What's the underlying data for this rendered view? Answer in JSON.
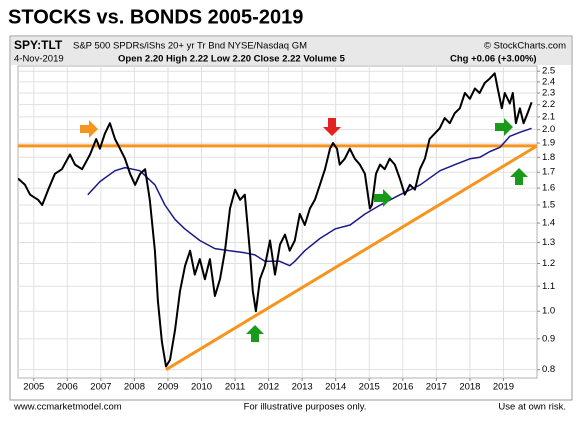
{
  "chart_data": {
    "type": "line",
    "title": "STOCKS vs. BONDS 2005-2019",
    "symbol": "SPY:TLT",
    "description": "S&P 500 SPDRs/iShs 20+ yr Tr Bnd NYSE/Nasdaq GM",
    "source": "© StockCharts.com",
    "date": "4-Nov-2019",
    "quote": "Open 2.20  High 2.22  Low 2.20  Close 2.22  Volume 5",
    "change": "Chg +0.06 (+3.00%)",
    "footer": [
      "www.ccmarketmodel.com",
      "For illustrative purposes only.",
      "Use at own risk."
    ],
    "log_scale": true,
    "grid": true,
    "xlim": [
      2004.53,
      2020.0
    ],
    "xticks": [
      2005,
      2006,
      2007,
      2008,
      2009,
      2010,
      2011,
      2012,
      2013,
      2014,
      2015,
      2016,
      2017,
      2018,
      2019
    ],
    "ylim": [
      0.775,
      2.55
    ],
    "yticks": [
      0.8,
      0.9,
      {
        "value": 1,
        "label": "1.0"
      },
      1.1,
      1.2,
      1.3,
      1.4,
      1.5,
      1.6,
      1.7,
      1.8,
      1.9,
      {
        "value": 2,
        "label": "2.0"
      },
      2.1,
      2.2,
      2.3,
      2.4,
      2.5
    ],
    "series": [
      {
        "color": "#000000",
        "line_width": 2,
        "x": [
          2004.53,
          2004.74,
          2004.89,
          2005.13,
          2005.25,
          2005.43,
          2005.63,
          2005.84,
          2006.08,
          2006.23,
          2006.44,
          2006.68,
          2006.86,
          2006.97,
          2007.12,
          2007.27,
          2007.42,
          2007.57,
          2007.72,
          2007.87,
          2008.02,
          2008.17,
          2008.32,
          2008.46,
          2008.61,
          2008.7,
          2008.82,
          2008.94,
          2009.06,
          2009.21,
          2009.36,
          2009.51,
          2009.66,
          2009.8,
          2009.95,
          2010.1,
          2010.25,
          2010.4,
          2010.55,
          2010.7,
          2010.85,
          2011.0,
          2011.15,
          2011.29,
          2011.44,
          2011.53,
          2011.62,
          2011.74,
          2011.89,
          2012.04,
          2012.19,
          2012.34,
          2012.49,
          2012.63,
          2012.78,
          2012.93,
          2013.08,
          2013.23,
          2013.38,
          2013.53,
          2013.68,
          2013.83,
          2013.92,
          2014.04,
          2014.12,
          2014.27,
          2014.42,
          2014.57,
          2014.72,
          2014.87,
          2015.02,
          2015.08,
          2015.2,
          2015.32,
          2015.46,
          2015.61,
          2015.76,
          2015.91,
          2016.06,
          2016.21,
          2016.36,
          2016.51,
          2016.66,
          2016.8,
          2016.95,
          2017.1,
          2017.25,
          2017.4,
          2017.55,
          2017.7,
          2017.85,
          2018.0,
          2018.15,
          2018.29,
          2018.44,
          2018.59,
          2018.74,
          2018.83,
          2018.95,
          2019.04,
          2019.19,
          2019.28,
          2019.37,
          2019.49,
          2019.6,
          2019.72,
          2019.84
        ],
        "values": [
          1.66,
          1.62,
          1.56,
          1.53,
          1.5,
          1.59,
          1.69,
          1.72,
          1.82,
          1.75,
          1.72,
          1.82,
          1.93,
          1.86,
          1.97,
          2.05,
          1.93,
          1.86,
          1.79,
          1.69,
          1.62,
          1.69,
          1.72,
          1.53,
          1.26,
          1.04,
          0.89,
          0.81,
          0.83,
          0.93,
          1.08,
          1.19,
          1.26,
          1.15,
          1.22,
          1.13,
          1.22,
          1.06,
          1.13,
          1.26,
          1.48,
          1.59,
          1.53,
          1.56,
          1.26,
          1.08,
          1.0,
          1.13,
          1.19,
          1.31,
          1.15,
          1.29,
          1.34,
          1.26,
          1.31,
          1.45,
          1.39,
          1.48,
          1.53,
          1.62,
          1.72,
          1.86,
          1.9,
          1.86,
          1.75,
          1.79,
          1.86,
          1.79,
          1.75,
          1.69,
          1.48,
          1.5,
          1.69,
          1.75,
          1.72,
          1.79,
          1.75,
          1.66,
          1.56,
          1.62,
          1.59,
          1.72,
          1.79,
          1.93,
          1.97,
          2.01,
          2.09,
          2.05,
          2.13,
          2.17,
          2.3,
          2.25,
          2.34,
          2.3,
          2.39,
          2.43,
          2.48,
          2.34,
          2.17,
          2.3,
          2.21,
          2.3,
          2.05,
          2.17,
          2.05,
          2.13,
          2.22
        ]
      },
      {
        "color": "#1a1a8c",
        "line_width": 1.5,
        "x": [
          2006.61,
          2006.97,
          2007.42,
          2007.72,
          2008.16,
          2008.61,
          2008.91,
          2009.21,
          2009.5,
          2009.95,
          2010.4,
          2010.84,
          2011.29,
          2011.59,
          2011.89,
          2012.33,
          2012.63,
          2012.78,
          2013.08,
          2013.53,
          2013.99,
          2014.43,
          2014.88,
          2015.33,
          2015.92,
          2016.52,
          2017.11,
          2017.56,
          2018.01,
          2018.3,
          2018.6,
          2018.9,
          2019.19,
          2019.49,
          2019.84
        ],
        "values": [
          1.56,
          1.64,
          1.71,
          1.73,
          1.71,
          1.62,
          1.5,
          1.42,
          1.37,
          1.31,
          1.27,
          1.26,
          1.25,
          1.24,
          1.21,
          1.21,
          1.19,
          1.21,
          1.26,
          1.32,
          1.37,
          1.39,
          1.45,
          1.5,
          1.56,
          1.62,
          1.71,
          1.75,
          1.79,
          1.8,
          1.84,
          1.87,
          1.95,
          1.98,
          2.01
        ]
      },
      {
        "color": "#f7941d",
        "line_width": 3,
        "x": [
          2004.53,
          2020.0
        ],
        "values": [
          1.88,
          1.88
        ]
      },
      {
        "color": "#f7941d",
        "line_width": 3,
        "x": [
          2008.94,
          2020.0
        ],
        "values": [
          0.8,
          1.88
        ]
      }
    ]
  }
}
